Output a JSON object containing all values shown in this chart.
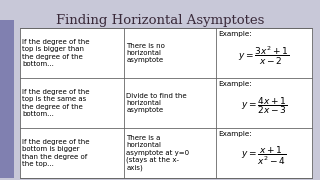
{
  "title": "Finding Horizontal Asymptotes",
  "background_color": "#c8c8d8",
  "table_bg": "#ffffff",
  "col1": [
    "If the degree of the\ntop is bigger than\nthe degree of the\nbottom...",
    "If the degree of the\ntop is the same as\nthe degree of the\nbottom...",
    "If the degree of the\nbottom is bigger\nthan the degree of\nthe top..."
  ],
  "col2": [
    "There is no\nhorizontal\nasymptote",
    "Divide to find the\nhorizontal\nasymptote",
    "There is a\nhorizontal\nasymptote at y=0\n(stays at the x-\naxis)"
  ],
  "col3_labels": [
    "Example:",
    "Example:",
    "Example:"
  ],
  "col3_formulas": [
    "$y = \\dfrac{3x^2+1}{x-2}$",
    "$y = \\dfrac{4x+1}{2x-3}$",
    "$y = \\dfrac{x+1}{x^2-4}$"
  ],
  "title_fontsize": 9.5,
  "cell_fontsize": 5.0,
  "example_fontsize": 5.2,
  "formula_fontsize": 6.5,
  "left_bar_color": "#8080b0",
  "title_color": "#3a2a3a"
}
